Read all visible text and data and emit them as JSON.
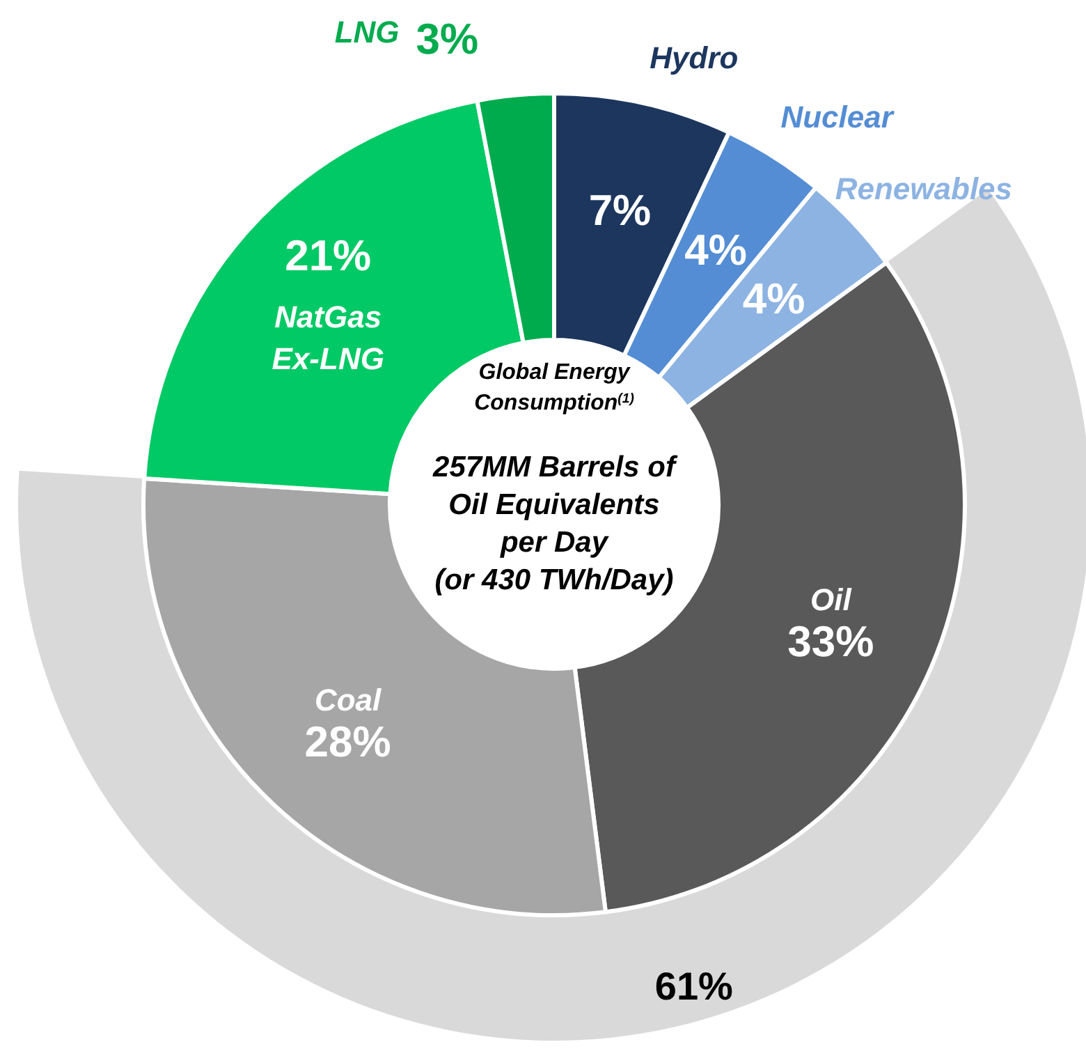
{
  "chart_data": {
    "type": "donut",
    "title": "Global Energy Consumption$^{(1)}$",
    "subtitle": "257MM Barrels of Oil Equivalents per Day",
    "annotations": [
      "(or 430 TWh/Day)"
    ],
    "categories": [
      "Hydro",
      "Nuclear",
      "Renewables",
      "Oil",
      "Coal",
      "NatGas Ex-LNG",
      "LNG"
    ],
    "series": [
      {
        "values": [
          7,
          4,
          4,
          33,
          28,
          21,
          3
        ],
        "colors": [
          "#1c365e",
          "#548dd4",
          "#8db3e2",
          "#595959",
          "#a6a6a6",
          "#00c965",
          "#00ab4e"
        ],
        "value_labels": [
          "7%",
          "4%",
          "4%",
          "33%",
          "28%",
          "21%",
          "3%"
        ]
      },
      {
        "color": "#d9d9d9",
        "values": [
          null,
          null,
          null,
          61,
          null,
          null,
          null
        ],
        "value_labels": [
          null,
          null,
          null,
          "61%",
          null,
          null,
          null
        ]
      }
    ]
  }
}
